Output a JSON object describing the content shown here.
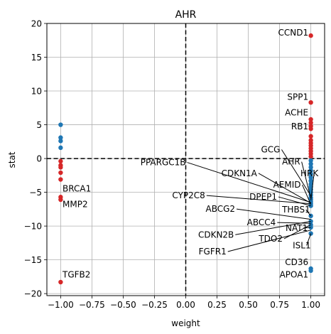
{
  "chart_data": {
    "type": "scatter",
    "title": "AHR",
    "xlabel": "weight",
    "ylabel": "stat",
    "xlim": [
      -1.11,
      1.11
    ],
    "ylim": [
      -20.3,
      20
    ],
    "xticks": [
      -1.0,
      -0.75,
      -0.5,
      -0.25,
      0.0,
      0.25,
      0.5,
      0.75,
      1.0
    ],
    "xtick_labels": [
      "−1.00",
      "−0.75",
      "−0.50",
      "−0.25",
      "0.00",
      "0.25",
      "0.50",
      "0.75",
      "1.00"
    ],
    "yticks": [
      -20,
      -15,
      -10,
      -5,
      0,
      5,
      10,
      15,
      20
    ],
    "ytick_labels": [
      "−20",
      "−15",
      "−10",
      "−5",
      "0",
      "5",
      "10",
      "15",
      "20"
    ],
    "grid": true,
    "reference_lines": {
      "x": 0,
      "y": 0,
      "style": "dashed"
    },
    "colors": {
      "red": "#d62728",
      "blue": "#1f77b4"
    },
    "series": [
      {
        "color": "red",
        "points": [
          [
            -1,
            -0.4
          ],
          [
            -1,
            -1.0
          ],
          [
            -1,
            -1.3
          ],
          [
            -1,
            -2.1
          ],
          [
            -1,
            -3.1
          ],
          [
            -1,
            -5.7
          ],
          [
            -1,
            -6.1
          ],
          [
            -1,
            -18.3
          ],
          [
            1,
            18.2
          ],
          [
            1,
            8.3
          ],
          [
            1,
            5.8
          ],
          [
            1,
            5.3
          ],
          [
            1,
            4.8
          ],
          [
            1,
            4.4
          ],
          [
            1,
            3.3
          ],
          [
            1,
            2.7
          ],
          [
            1,
            2.3
          ],
          [
            1,
            1.9
          ],
          [
            1,
            1.5
          ],
          [
            1,
            1.1
          ],
          [
            1,
            0.7
          ],
          [
            1,
            0.3
          ]
        ]
      },
      {
        "color": "blue",
        "points": [
          [
            -1,
            5.0
          ],
          [
            -1,
            3.1
          ],
          [
            -1,
            2.6
          ],
          [
            -1,
            1.6
          ],
          [
            1,
            -0.3
          ],
          [
            1,
            -0.8
          ],
          [
            1,
            -1.3
          ],
          [
            1,
            -1.8
          ],
          [
            1,
            -2.3
          ],
          [
            1,
            -2.8
          ],
          [
            1,
            -3.3
          ],
          [
            1,
            -3.8
          ],
          [
            1,
            -4.2
          ],
          [
            1,
            -4.6
          ],
          [
            1,
            -5.0
          ],
          [
            1,
            -5.4
          ],
          [
            1,
            -5.8
          ],
          [
            1,
            -6.1
          ],
          [
            1,
            -6.4
          ],
          [
            1,
            -6.7
          ],
          [
            1,
            -7.0
          ],
          [
            1,
            -8.5
          ],
          [
            1,
            -9.3
          ],
          [
            1,
            -9.8
          ],
          [
            1,
            -10.2
          ],
          [
            1,
            -11.1
          ],
          [
            1,
            -16.3
          ],
          [
            1,
            -16.6
          ]
        ]
      }
    ],
    "annotations": [
      {
        "text": "CCND1",
        "x": 0.98,
        "y": 18.2
      },
      {
        "text": "SPP1",
        "x": 0.98,
        "y": 8.7
      },
      {
        "text": "ACHE",
        "x": 0.98,
        "y": 6.4
      },
      {
        "text": "RB1",
        "x": 0.98,
        "y": 4.3
      },
      {
        "text": "BRCA1",
        "x": -0.985,
        "y": -4.9
      },
      {
        "text": "MMP2",
        "x": -0.985,
        "y": -7.2
      },
      {
        "text": "TGFB2",
        "x": -0.985,
        "y": -17.6
      },
      {
        "text": "GCG",
        "x": 0.755,
        "y": 0.9,
        "px": 1.0,
        "py": -5.5
      },
      {
        "text": "AHR",
        "x": 0.915,
        "y": -0.9,
        "px": 1.0,
        "py": -5.9
      },
      {
        "text": "HRK",
        "x": 1.06,
        "y": -2.6,
        "px": 1.0,
        "py": -6.2
      },
      {
        "text": "PPARGC1B",
        "x": 0.0,
        "y": -1.0,
        "px": 1.0,
        "py": -6.5
      },
      {
        "text": "CDKN1A",
        "x": 0.57,
        "y": -2.6,
        "px": 1.0,
        "py": -6.6
      },
      {
        "text": "AEMID",
        "x": 0.92,
        "y": -4.3,
        "px": 1.0,
        "py": -6.8
      },
      {
        "text": "CYP2C8",
        "x": 0.155,
        "y": -5.9,
        "px": 1.0,
        "py": -6.7
      },
      {
        "text": "DPEP1",
        "x": 0.73,
        "y": -6.1,
        "px": 1.0,
        "py": -7.0
      },
      {
        "text": "ABCG2",
        "x": 0.395,
        "y": -7.9,
        "px": 1.0,
        "py": -9.0
      },
      {
        "text": "THBS1",
        "x": 0.995,
        "y": -8.0,
        "px": 1.0,
        "py": -8.5
      },
      {
        "text": "ABCC4",
        "x": 0.72,
        "y": -9.9,
        "px": 1.0,
        "py": -9.6
      },
      {
        "text": "NAT1",
        "x": 0.975,
        "y": -10.7,
        "px": 1.0,
        "py": -10.2
      },
      {
        "text": "CDKN2B",
        "x": 0.385,
        "y": -11.7,
        "px": 1.0,
        "py": -9.3
      },
      {
        "text": "TDO2",
        "x": 0.775,
        "y": -12.3,
        "px": 1.0,
        "py": -9.8
      },
      {
        "text": "ISL1",
        "x": 1.0,
        "y": -13.3,
        "px": 1.0,
        "py": -11.1
      },
      {
        "text": "FGFR1",
        "x": 0.325,
        "y": -14.2,
        "px": 1.0,
        "py": -10.6
      },
      {
        "text": "CD36",
        "x": 0.98,
        "y": -15.8
      },
      {
        "text": "APOA1",
        "x": 0.98,
        "y": -17.6
      }
    ]
  }
}
